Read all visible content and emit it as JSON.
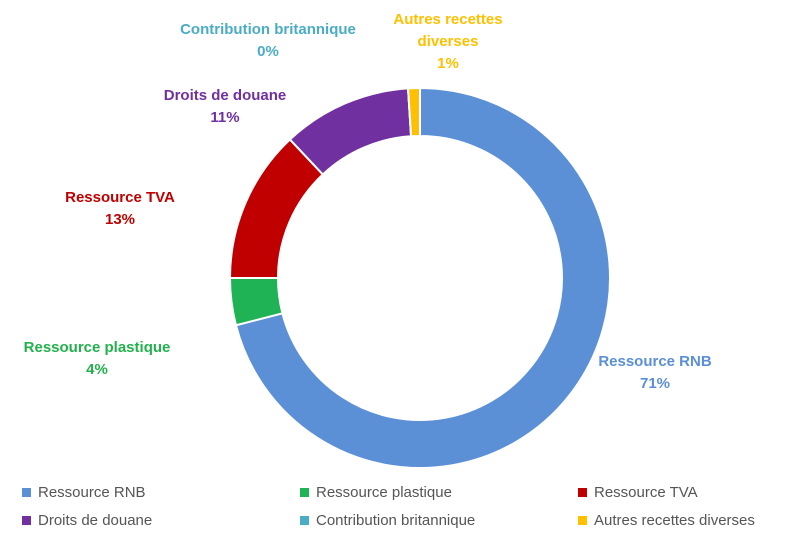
{
  "chart_data": {
    "type": "donut",
    "categories": [
      "Ressource RNB",
      "Ressource plastique",
      "Ressource TVA",
      "Droits de douane",
      "Contribution britannique",
      "Autres recettes diverses"
    ],
    "values": [
      71,
      4,
      13,
      11,
      0,
      1
    ],
    "value_labels": [
      "71%",
      "4%",
      "13%",
      "11%",
      "0%",
      "1%"
    ],
    "colors": [
      "#5b8fd6",
      "#1fb356",
      "#c00000",
      "#7030a0",
      "#4bacc6",
      "#ffc000"
    ],
    "legend": "bottom"
  }
}
